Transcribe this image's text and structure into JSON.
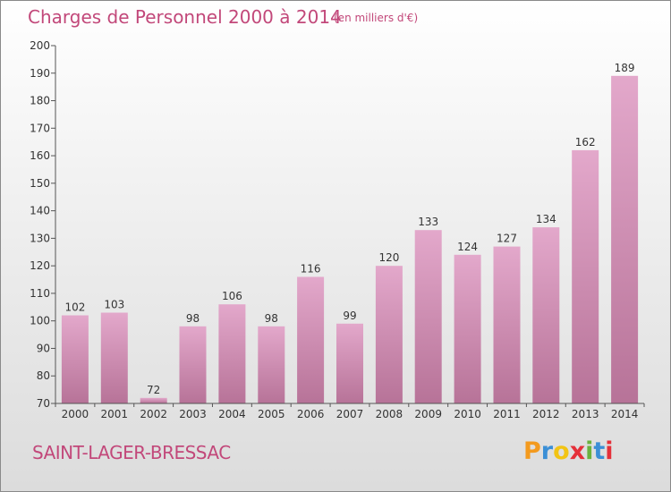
{
  "header": {
    "title": "Charges de Personnel 2000 à 2014",
    "subtitle": "(en milliers d'€)"
  },
  "footer": {
    "commune": "SAINT-LAGER-BRESSAC",
    "brand_letters": [
      {
        "ch": "P",
        "color": "#f39a1e"
      },
      {
        "ch": "r",
        "color": "#3b8fd6"
      },
      {
        "ch": "o",
        "color": "#f2c414"
      },
      {
        "ch": "x",
        "color": "#e5303a"
      },
      {
        "ch": "i",
        "color": "#6ab23e"
      },
      {
        "ch": "t",
        "color": "#3b8fd6"
      },
      {
        "ch": "i",
        "color": "#e5303a"
      }
    ]
  },
  "colors": {
    "bar_light": "#e3a8cb",
    "bar_dark": "#b77398",
    "axis": "#555555",
    "title": "#c2487a"
  },
  "chart_data": {
    "type": "bar",
    "categories": [
      "2000",
      "2001",
      "2002",
      "2003",
      "2004",
      "2005",
      "2006",
      "2007",
      "2008",
      "2009",
      "2010",
      "2011",
      "2012",
      "2013",
      "2014"
    ],
    "values": [
      102,
      103,
      72,
      98,
      106,
      98,
      116,
      99,
      120,
      133,
      124,
      127,
      134,
      162,
      189
    ],
    "title": "Charges de Personnel 2000 à 2014",
    "subtitle": "(en milliers d'€)",
    "xlabel": "",
    "ylabel": "",
    "ylim": [
      70,
      200
    ],
    "yticks": [
      70,
      80,
      90,
      100,
      110,
      120,
      130,
      140,
      150,
      160,
      170,
      180,
      190,
      200
    ],
    "grid": false,
    "legend": "none"
  }
}
